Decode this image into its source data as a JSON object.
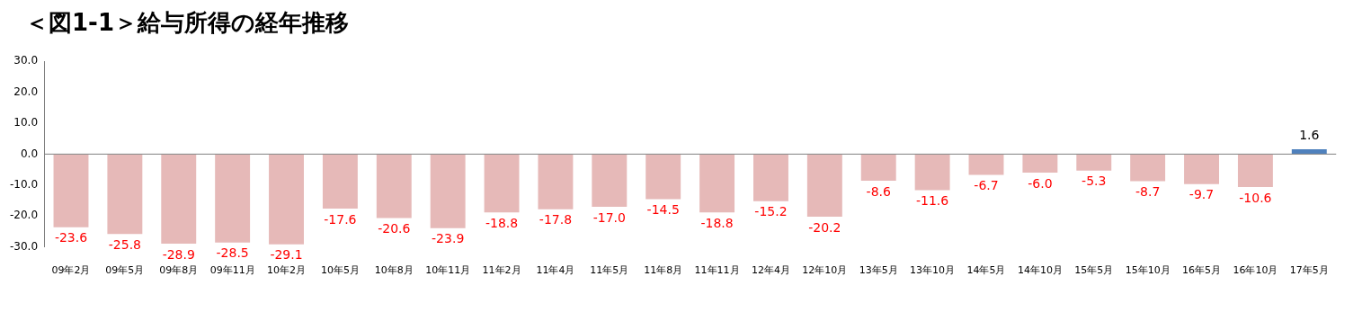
{
  "chart_data": {
    "type": "bar",
    "title": "＜図1-1＞給与所得の経年推移",
    "categories": [
      "09年2月",
      "09年5月",
      "09年8月",
      "09年11月",
      "10年2月",
      "10年5月",
      "10年8月",
      "10年11月",
      "11年2月",
      "11年4月",
      "11年5月",
      "11年8月",
      "11年11月",
      "12年4月",
      "12年10月",
      "13年5月",
      "13年10月",
      "14年5月",
      "14年10月",
      "15年5月",
      "15年10月",
      "16年5月",
      "16年10月",
      "17年5月"
    ],
    "values": [
      -23.6,
      -25.8,
      -28.9,
      -28.5,
      -29.1,
      -17.6,
      -20.6,
      -23.9,
      -18.8,
      -17.8,
      -17.0,
      -14.5,
      -18.8,
      -15.2,
      -20.2,
      -8.6,
      -11.6,
      -6.7,
      -6.0,
      -5.3,
      -8.7,
      -9.7,
      -10.6,
      1.6
    ],
    "colors": [
      "#e6b9b8",
      "#e6b9b8",
      "#e6b9b8",
      "#e6b9b8",
      "#e6b9b8",
      "#e6b9b8",
      "#e6b9b8",
      "#e6b9b8",
      "#e6b9b8",
      "#e6b9b8",
      "#e6b9b8",
      "#e6b9b8",
      "#e6b9b8",
      "#e6b9b8",
      "#e6b9b8",
      "#e6b9b8",
      "#e6b9b8",
      "#e6b9b8",
      "#e6b9b8",
      "#e6b9b8",
      "#e6b9b8",
      "#e6b9b8",
      "#e6b9b8",
      "#4f81bd"
    ],
    "ylim": [
      -30,
      30
    ],
    "yticks": [
      {
        "value": -30,
        "label": "-30.0"
      },
      {
        "value": -20,
        "label": "-20.0"
      },
      {
        "value": -10,
        "label": "-10.0"
      },
      {
        "value": 0,
        "label": "0.0"
      },
      {
        "value": 10,
        "label": "10.0"
      },
      {
        "value": 20,
        "label": "20.0"
      },
      {
        "value": 30,
        "label": "30.0"
      }
    ],
    "value_labels": [
      "-23.6",
      "-25.8",
      "-28.9",
      "-28.5",
      "-29.1",
      "-17.6",
      "-20.6",
      "-23.9",
      "-18.8",
      "-17.8",
      "-17.0",
      "-14.5",
      "-18.8",
      "-15.2",
      "-20.2",
      "-8.6",
      "-11.6",
      "-6.7",
      "-6.0",
      "-5.3",
      "-8.7",
      "-9.7",
      "-10.6",
      "1.6"
    ],
    "legend": false
  }
}
